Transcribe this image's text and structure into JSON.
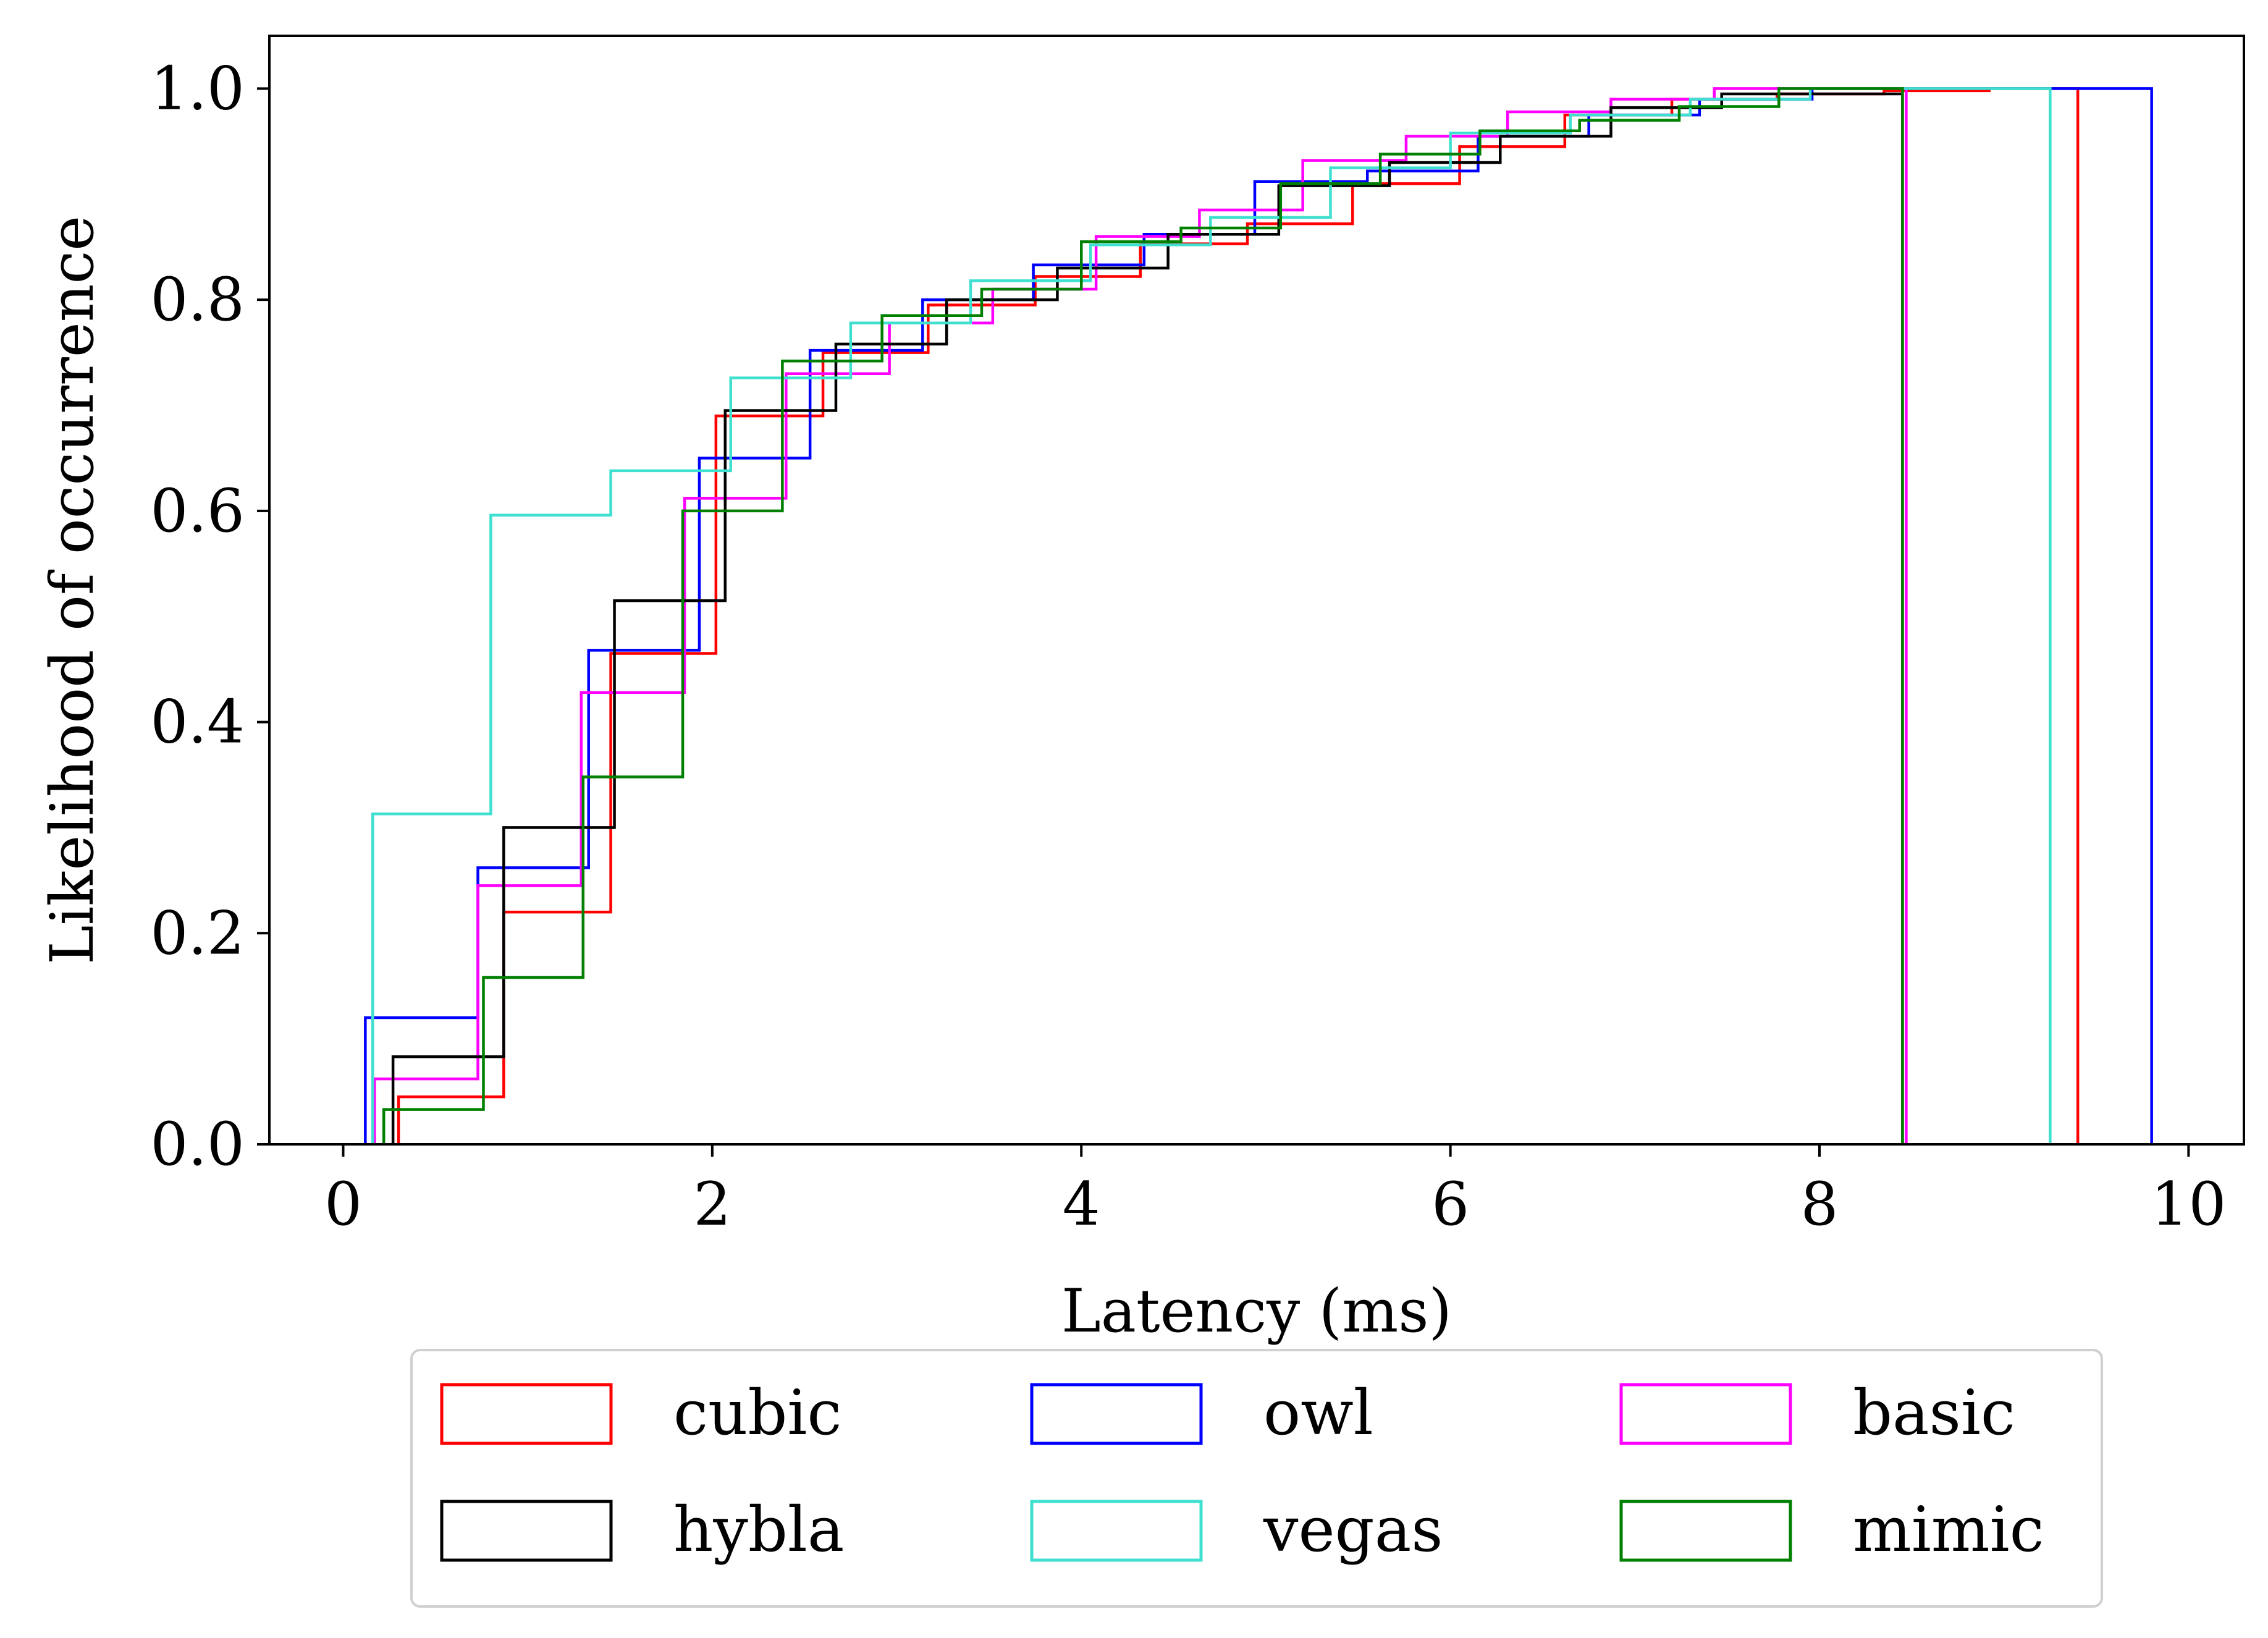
{
  "chart_data": {
    "type": "step-histogram (cumulative)",
    "xlabel": "Latency (ms)",
    "ylabel": "Likelihood of occurrence",
    "xlim": [
      -0.4,
      10.3
    ],
    "ylim": [
      0.0,
      1.05
    ],
    "x_ticks": [
      0,
      2,
      4,
      6,
      8,
      10
    ],
    "x_tick_labels": [
      "0",
      "2",
      "4",
      "6",
      "8",
      "10"
    ],
    "y_ticks": [
      0.0,
      0.2,
      0.4,
      0.6,
      0.8,
      1.0
    ],
    "y_tick_labels": [
      "0.0",
      "0.2",
      "0.4",
      "0.6",
      "0.8",
      "1.0"
    ],
    "grid": false,
    "legend_position": "below plot, 3 columns",
    "series": [
      {
        "name": "cubic",
        "color": "#ff0000",
        "edges": [
          0.3,
          0.87,
          1.45,
          2.02,
          2.6,
          3.17,
          3.75,
          4.32,
          4.9,
          5.47,
          6.05,
          6.62,
          7.2,
          7.77,
          8.35,
          8.92,
          9.4
        ],
        "cdf": [
          0.045,
          0.22,
          0.465,
          0.69,
          0.75,
          0.795,
          0.822,
          0.853,
          0.872,
          0.91,
          0.945,
          0.975,
          0.99,
          0.995,
          0.998,
          1.0
        ]
      },
      {
        "name": "owl",
        "color": "#0000ff",
        "edges": [
          0.12,
          0.73,
          1.33,
          1.93,
          2.53,
          3.14,
          3.74,
          4.34,
          4.94,
          5.55,
          6.15,
          6.75,
          7.35,
          7.96,
          9.8
        ],
        "cdf": [
          0.12,
          0.262,
          0.468,
          0.65,
          0.752,
          0.8,
          0.833,
          0.862,
          0.912,
          0.922,
          0.955,
          0.975,
          0.99,
          1.0
        ]
      },
      {
        "name": "basic",
        "color": "#ff00ff",
        "edges": [
          0.17,
          0.73,
          1.29,
          1.85,
          2.4,
          2.96,
          3.52,
          4.08,
          4.64,
          5.2,
          5.76,
          6.31,
          6.87,
          7.43,
          8.47
        ],
        "cdf": [
          0.062,
          0.245,
          0.428,
          0.612,
          0.73,
          0.778,
          0.81,
          0.86,
          0.885,
          0.932,
          0.955,
          0.978,
          0.99,
          1.0
        ]
      },
      {
        "name": "hybla",
        "color": "#000000",
        "edges": [
          0.27,
          0.87,
          1.47,
          2.07,
          2.67,
          3.27,
          3.87,
          4.47,
          5.07,
          5.67,
          6.27,
          6.87,
          7.47,
          8.45
        ],
        "cdf": [
          0.083,
          0.3,
          0.515,
          0.695,
          0.758,
          0.8,
          0.83,
          0.862,
          0.908,
          0.93,
          0.955,
          0.982,
          0.995
        ]
      },
      {
        "name": "vegas",
        "color": "#40e0d0",
        "edges": [
          0.16,
          0.8,
          1.45,
          2.1,
          2.75,
          3.4,
          4.05,
          4.7,
          5.35,
          6.0,
          6.65,
          7.3,
          7.95,
          9.25
        ],
        "cdf": [
          0.313,
          0.596,
          0.638,
          0.726,
          0.778,
          0.818,
          0.852,
          0.878,
          0.925,
          0.958,
          0.975,
          0.99,
          1.0
        ]
      },
      {
        "name": "mimic",
        "color": "#008000",
        "edges": [
          0.22,
          0.76,
          1.3,
          1.84,
          2.38,
          2.92,
          3.46,
          4.0,
          4.54,
          5.08,
          5.62,
          6.16,
          6.7,
          7.24,
          7.78,
          8.45
        ],
        "cdf": [
          0.033,
          0.158,
          0.348,
          0.6,
          0.742,
          0.785,
          0.81,
          0.855,
          0.868,
          0.91,
          0.938,
          0.96,
          0.97,
          0.983,
          1.0
        ]
      }
    ],
    "legend": {
      "rows": [
        [
          "cubic",
          "owl",
          "basic"
        ],
        [
          "hybla",
          "vegas",
          "mimic"
        ]
      ],
      "colors": {
        "cubic": "#ff0000",
        "owl": "#0000ff",
        "basic": "#ff00ff",
        "hybla": "#000000",
        "vegas": "#40e0d0",
        "mimic": "#008000"
      }
    }
  }
}
